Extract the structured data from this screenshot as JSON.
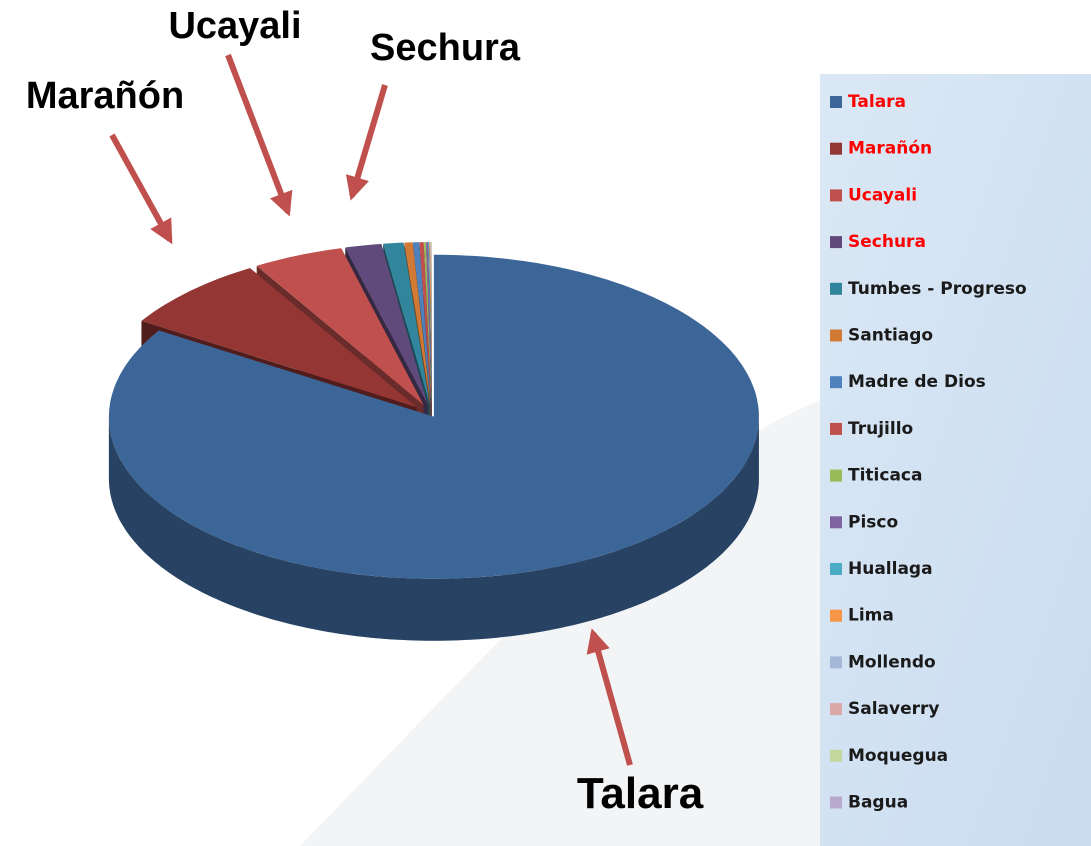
{
  "chart_data": {
    "type": "pie3d",
    "categories": [
      "Talara",
      "Marañón",
      "Ucayali",
      "Sechura",
      "Tumbes - Progreso",
      "Santiago",
      "Madre de Dios",
      "Trujillo",
      "Titicaca",
      "Pisco",
      "Huallaga",
      "Lima",
      "Mollendo",
      "Salaverry",
      "Moquegua",
      "Bagua"
    ],
    "values": [
      84,
      7.5,
      4.5,
      1.8,
      1,
      0.4,
      0.3,
      0.2,
      0.1,
      0.1,
      0.05,
      0.05,
      0.03,
      0.02,
      0.02,
      0.01
    ],
    "colors": [
      "#3d6698",
      "#943634",
      "#c0504d",
      "#604a7b",
      "#31859c",
      "#d07a35",
      "#4f81bd",
      "#c0504d",
      "#9bbb59",
      "#8064a2",
      "#4bacc6",
      "#f79646",
      "#a5b8d8",
      "#dba8a8",
      "#c3d69b",
      "#b9aacd"
    ],
    "legend_text_colors": [
      "#ff0000",
      "#ff0000",
      "#ff0000",
      "#ff0000",
      "#1a1a1a",
      "#1a1a1a",
      "#1a1a1a",
      "#1a1a1a",
      "#1a1a1a",
      "#1a1a1a",
      "#1a1a1a",
      "#1a1a1a",
      "#1a1a1a",
      "#1a1a1a",
      "#1a1a1a",
      "#1a1a1a"
    ],
    "legend": "right",
    "annotations": [
      {
        "text": "Marañón"
      },
      {
        "text": "Ucayali"
      },
      {
        "text": "Sechura"
      },
      {
        "text": "Talara"
      }
    ]
  }
}
